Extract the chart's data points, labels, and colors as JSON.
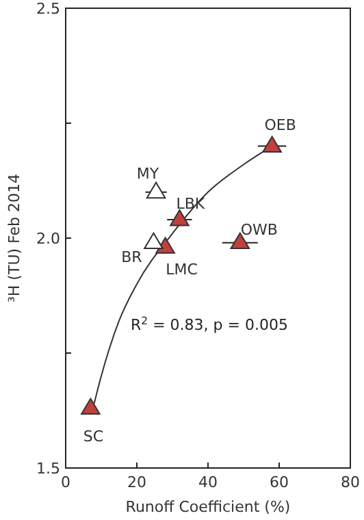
{
  "chart_data": {
    "type": "scatter",
    "xlabel": "Runoff Coefficient (%)",
    "ylabel": "³H (TU) Feb 2014",
    "xlim": [
      0,
      80
    ],
    "ylim": [
      1.5,
      2.5
    ],
    "xticks": [
      0,
      20,
      40,
      60,
      80
    ],
    "yticks": [
      {
        "value": 1.5,
        "label": "1.5"
      },
      {
        "value": 1.75,
        "label": null
      },
      {
        "value": 2.0,
        "label": "2.0"
      },
      {
        "value": 2.25,
        "label": null
      },
      {
        "value": 2.5,
        "label": "2.5"
      }
    ],
    "marker": "triangle",
    "grid": false,
    "series": [
      {
        "type": "line",
        "color": "#333333",
        "marker": "none",
        "x": [
          8,
          10,
          15,
          20,
          30,
          40,
          50,
          58
        ],
        "values": [
          1.64,
          1.7,
          1.82,
          1.9,
          2.01,
          2.1,
          2.16,
          2.2
        ]
      },
      {
        "color": "#c1403d",
        "x": [
          58,
          32,
          28,
          49,
          7
        ],
        "values": [
          2.2,
          2.04,
          1.98,
          1.99,
          1.63
        ],
        "xerrors": [
          4,
          3.5,
          null,
          5,
          null
        ]
      },
      {
        "color": "#ffffff",
        "x": [
          25.4,
          24.7
        ],
        "values": [
          2.1,
          1.99
        ],
        "xerrors": [
          3,
          null
        ]
      }
    ],
    "annotations": [
      {
        "text": "OEB",
        "x": 58,
        "y": 2.2
      },
      {
        "text": "MY",
        "x": 25.4,
        "y": 2.1
      },
      {
        "text": "LBK",
        "x": 32,
        "y": 2.04
      },
      {
        "text": "BR",
        "x": 24.7,
        "y": 1.99
      },
      {
        "text": "LMC",
        "x": 28,
        "y": 1.98
      },
      {
        "text": "OWB",
        "x": 49,
        "y": 1.99
      },
      {
        "text": "SC",
        "x": 7,
        "y": 1.63
      },
      "R$^{2}$ = 0.83, p = 0.005"
    ]
  }
}
